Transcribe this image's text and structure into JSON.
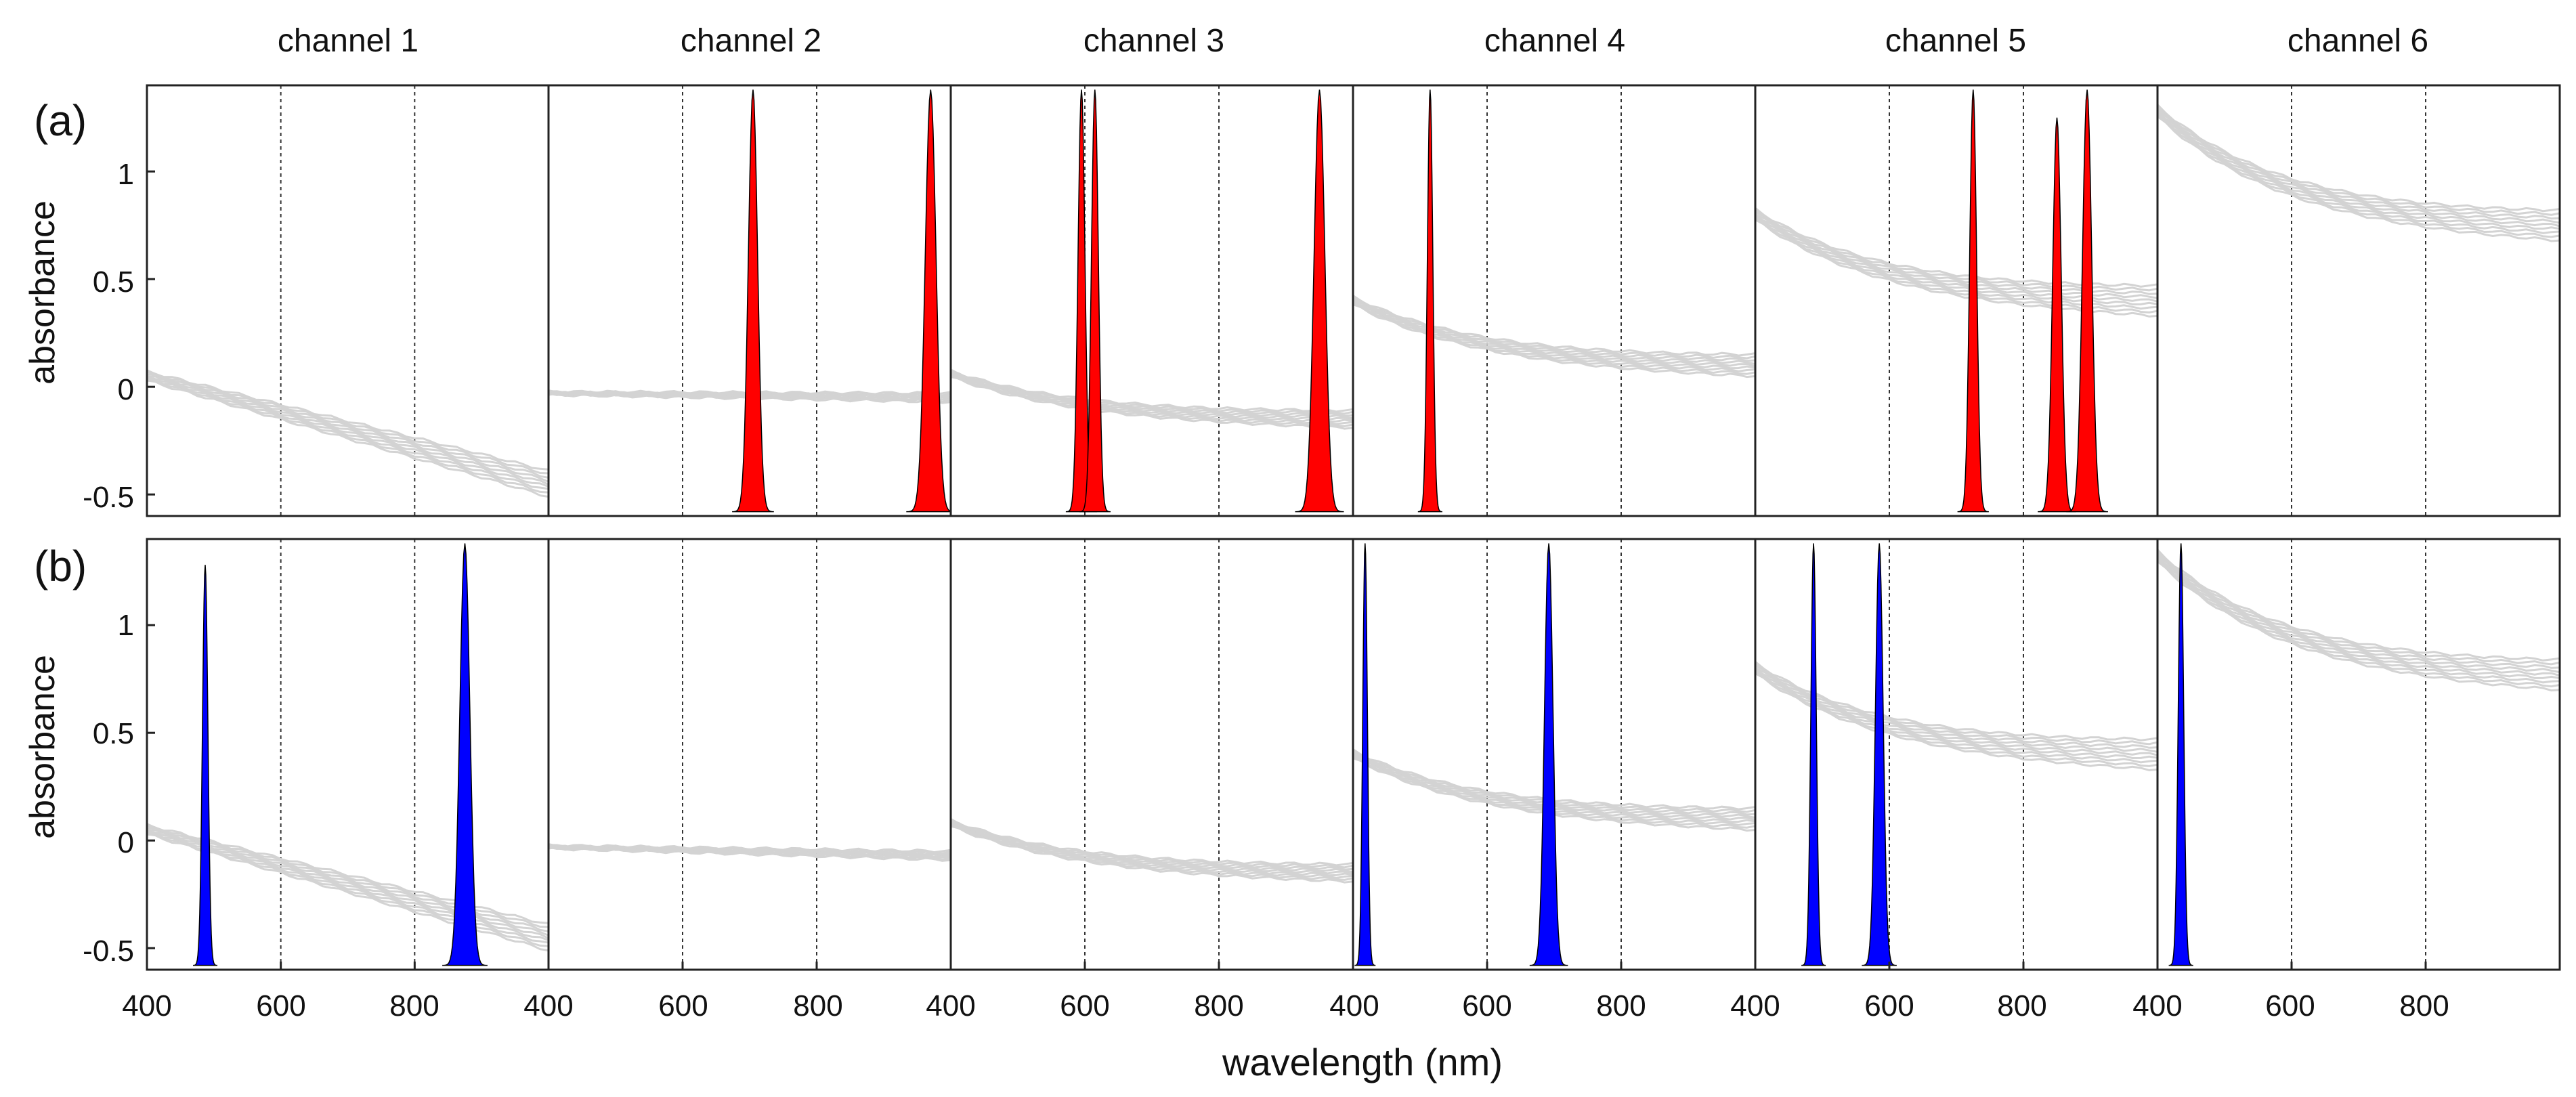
{
  "chart_data": {
    "type": "line",
    "xlabel": "wavelength (nm)",
    "ylabel": "absorbance",
    "xlim": [
      400,
      1000
    ],
    "ylim": [
      -0.6,
      1.4
    ],
    "xticks": [
      "400",
      "600",
      "800"
    ],
    "yticks": [
      "-0.5",
      "0",
      "0.5",
      "1"
    ],
    "x_gridlines": [
      600,
      800
    ],
    "grid_style": "dotted vertical",
    "background_color": "#d3d3d3",
    "red_color": "#ff0000",
    "blue_color": "#0000ff",
    "channels": [
      "channel 1",
      "channel 2",
      "channel 3",
      "channel 4",
      "channel 5",
      "channel 6"
    ],
    "rows": [
      {
        "label": "(a)",
        "peak_color": "red",
        "panels": [
          {
            "channel": "channel 1",
            "spectrum": {
              "start": 0.05,
              "end": -0.45,
              "shape": "linear",
              "spread": 0.06
            },
            "peaks": []
          },
          {
            "channel": "channel 2",
            "spectrum": {
              "start": -0.03,
              "end": -0.05,
              "shape": "flat",
              "spread": 0.02
            },
            "peaks": [
              {
                "center": 705,
                "height": 1.38,
                "width": 12
              },
              {
                "center": 970,
                "height": 1.38,
                "width": 14
              }
            ]
          },
          {
            "channel": "channel 3",
            "spectrum": {
              "start": 0.06,
              "end": -0.15,
              "shape": "decay",
              "spread": 0.04
            },
            "peaks": [
              {
                "center": 595,
                "height": 1.38,
                "width": 9
              },
              {
                "center": 615,
                "height": 1.38,
                "width": 9
              },
              {
                "center": 950,
                "height": 1.38,
                "width": 14
              }
            ]
          },
          {
            "channel": "channel 4",
            "spectrum": {
              "start": 0.4,
              "end": 0.1,
              "shape": "decay",
              "spread": 0.05
            },
            "peaks": [
              {
                "center": 515,
                "height": 1.38,
                "width": 7
              }
            ]
          },
          {
            "channel": "channel 5",
            "spectrum": {
              "start": 0.8,
              "end": 0.4,
              "shape": "decay",
              "spread": 0.07
            },
            "peaks": [
              {
                "center": 725,
                "height": 1.38,
                "width": 9
              },
              {
                "center": 850,
                "height": 1.25,
                "width": 11
              },
              {
                "center": 895,
                "height": 1.38,
                "width": 12
              }
            ]
          },
          {
            "channel": "channel 6",
            "spectrum": {
              "start": 1.28,
              "end": 0.75,
              "shape": "decay",
              "spread": 0.07
            },
            "peaks": []
          }
        ]
      },
      {
        "label": "(b)",
        "peak_color": "blue",
        "panels": [
          {
            "channel": "channel 1",
            "spectrum": {
              "start": 0.05,
              "end": -0.45,
              "shape": "linear",
              "spread": 0.06
            },
            "peaks": [
              {
                "center": 487,
                "height": 1.28,
                "width": 7
              },
              {
                "center": 875,
                "height": 1.38,
                "width": 13
              }
            ]
          },
          {
            "channel": "channel 2",
            "spectrum": {
              "start": -0.03,
              "end": -0.07,
              "shape": "flat",
              "spread": 0.02
            },
            "peaks": []
          },
          {
            "channel": "channel 3",
            "spectrum": {
              "start": 0.08,
              "end": -0.15,
              "shape": "decay",
              "spread": 0.04
            },
            "peaks": []
          },
          {
            "channel": "channel 4",
            "spectrum": {
              "start": 0.4,
              "end": 0.1,
              "shape": "decay",
              "spread": 0.05
            },
            "peaks": [
              {
                "center": 418,
                "height": 1.38,
                "width": 6
              },
              {
                "center": 692,
                "height": 1.38,
                "width": 11
              }
            ]
          },
          {
            "channel": "channel 5",
            "spectrum": {
              "start": 0.8,
              "end": 0.4,
              "shape": "decay",
              "spread": 0.07
            },
            "peaks": [
              {
                "center": 487,
                "height": 1.38,
                "width": 7
              },
              {
                "center": 585,
                "height": 1.38,
                "width": 10
              }
            ]
          },
          {
            "channel": "channel 6",
            "spectrum": {
              "start": 1.32,
              "end": 0.77,
              "shape": "decay",
              "spread": 0.07
            },
            "peaks": [
              {
                "center": 435,
                "height": 1.38,
                "width": 7
              }
            ]
          }
        ]
      }
    ]
  }
}
